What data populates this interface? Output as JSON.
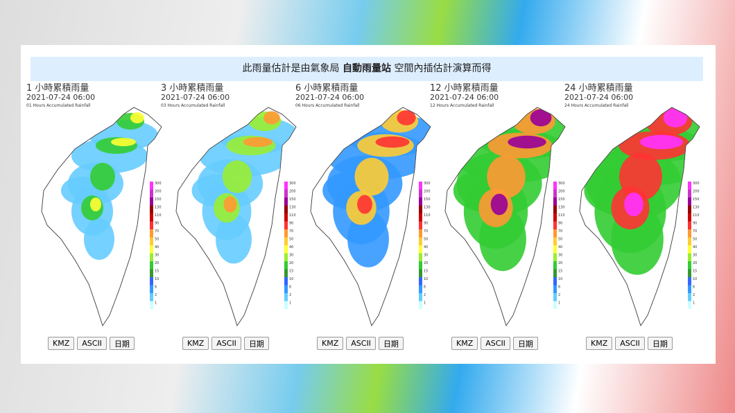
{
  "banner": {
    "before": "此雨量估計是由氣象局",
    "bold": "自動雨量站",
    "after": "空間內插估計演算而得"
  },
  "legend": [
    300,
    200,
    150,
    130,
    110,
    90,
    70,
    50,
    40,
    30,
    20,
    15,
    10,
    6,
    2,
    1
  ],
  "panels": [
    {
      "title": "1 小時累積雨量",
      "time": "2021-07-24 06:00",
      "subtitle": "01 Hours Accumulated Rainfall",
      "buttons": [
        "KMZ",
        "ASCII",
        "日期"
      ]
    },
    {
      "title": "3 小時累積雨量",
      "time": "2021-07-24 06:00",
      "subtitle": "03 Hours Accumulated Rainfall",
      "buttons": [
        "KMZ",
        "ASCII",
        "日期"
      ]
    },
    {
      "title": "6 小時累積雨量",
      "time": "2021-07-24 06:00",
      "subtitle": "06 Hours Accumulated Rainfall",
      "buttons": [
        "KMZ",
        "ASCII",
        "日期"
      ]
    },
    {
      "title": "12 小時累積雨量",
      "time": "2021-07-24 06:00",
      "subtitle": "12 Hours Accumulated Rainfall",
      "buttons": [
        "KMZ",
        "ASCII",
        "日期"
      ]
    },
    {
      "title": "24 小時累積雨量",
      "time": "2021-07-24 06:00",
      "subtitle": "24 Hours Accumulated Rainfall",
      "buttons": [
        "KMZ",
        "ASCII",
        "日期"
      ]
    }
  ]
}
